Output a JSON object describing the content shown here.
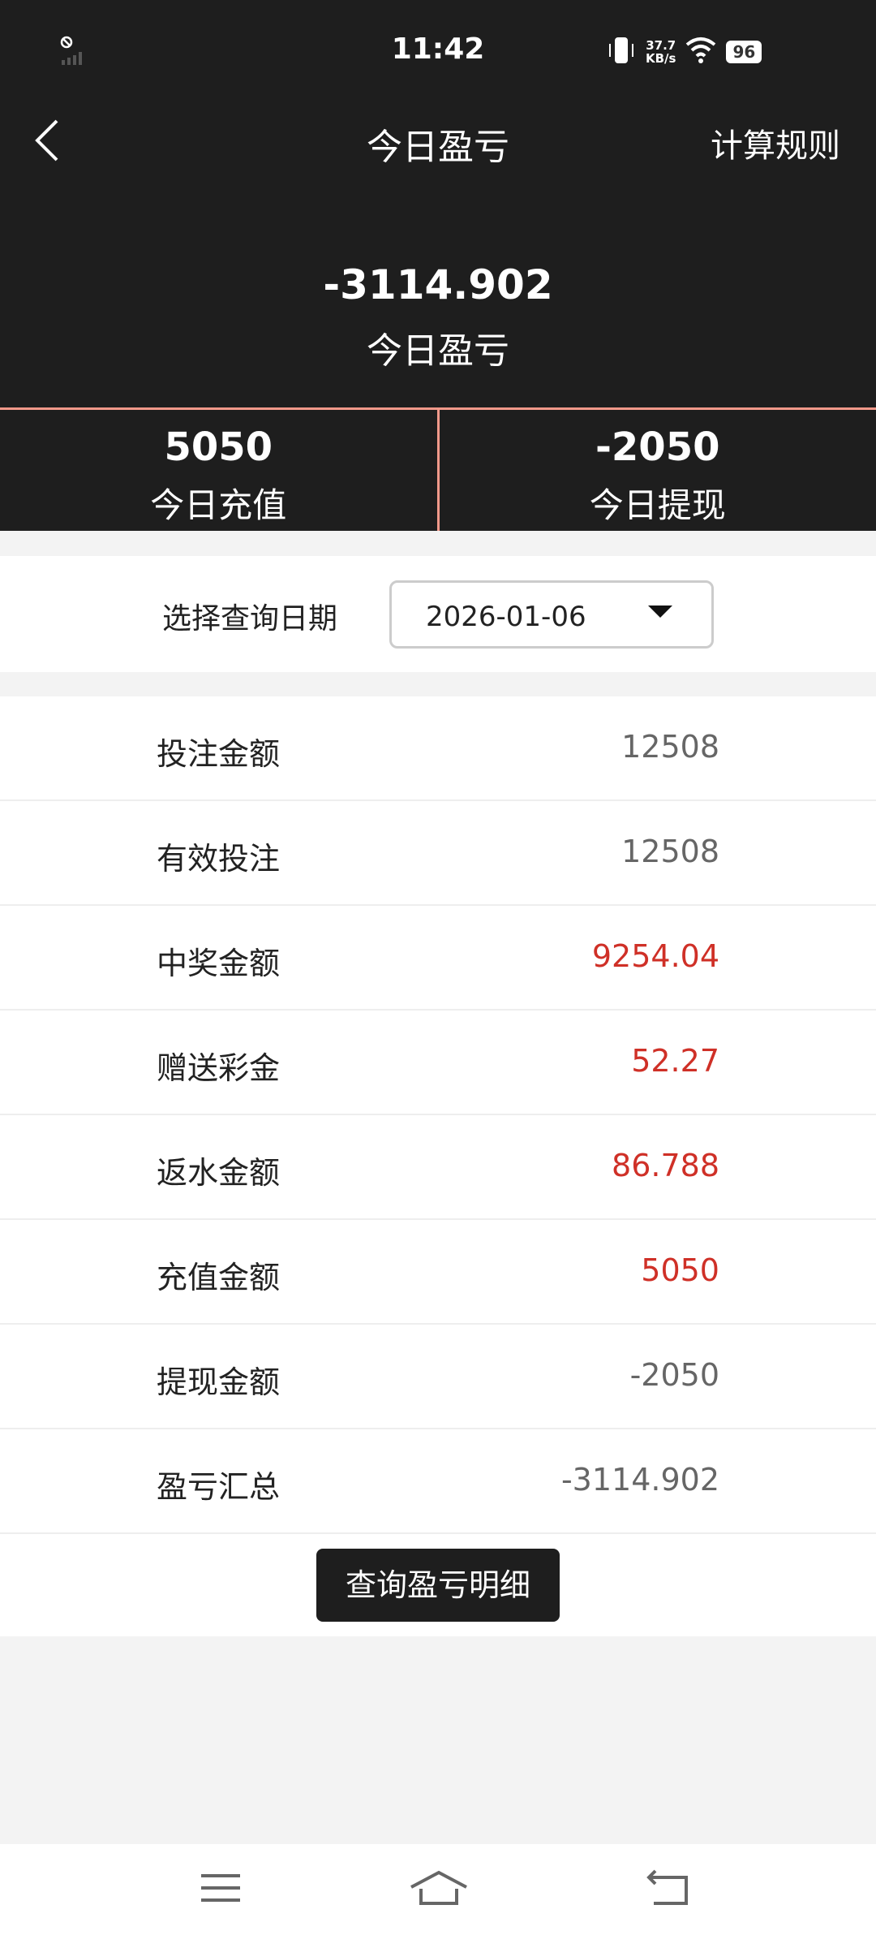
{
  "status": {
    "time": "11:42",
    "speed_value": "37.7",
    "speed_unit": "KB/s",
    "battery": "96"
  },
  "header": {
    "title": "今日盈亏",
    "rules_label": "计算规则"
  },
  "summary": {
    "total": "-3114.902",
    "total_label": "今日盈亏"
  },
  "stats": [
    {
      "value": "5050",
      "label": "今日充值"
    },
    {
      "value": "-2050",
      "label": "今日提现"
    }
  ],
  "date": {
    "label": "选择查询日期",
    "value": "2026-01-06"
  },
  "rows": [
    {
      "label": "投注金额",
      "value": "12508"
    },
    {
      "label": "有效投注",
      "value": "12508"
    },
    {
      "label": "中奖金额",
      "value": "9254.04"
    },
    {
      "label": "赠送彩金",
      "value": "52.27"
    },
    {
      "label": "返水金额",
      "value": "86.788"
    },
    {
      "label": "充值金额",
      "value": "5050"
    },
    {
      "label": "提现金额",
      "value": "-2050"
    },
    {
      "label": "盈亏汇总",
      "value": "-3114.902"
    }
  ],
  "button": {
    "label": "查询盈亏明细"
  },
  "colors": {
    "header_bg": "#1e1e1e",
    "divider": "#f2998a",
    "positive_red": "#cf3027"
  }
}
